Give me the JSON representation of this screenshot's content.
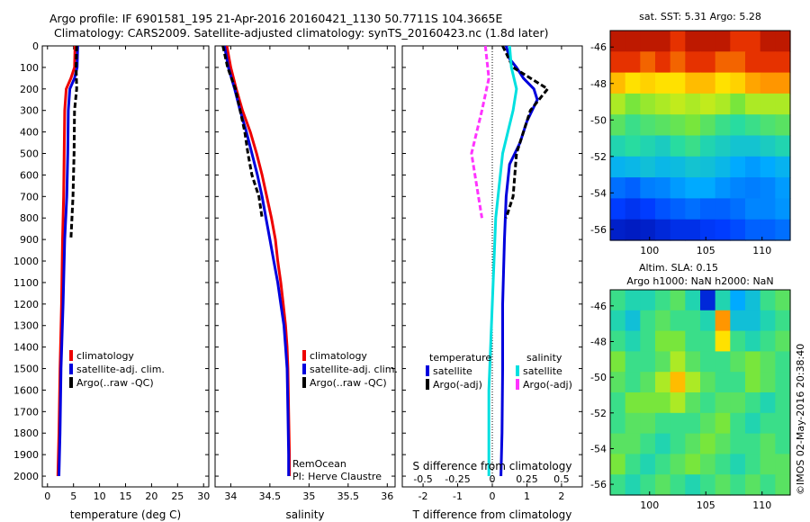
{
  "title_line1": "Argo profile: IF 6901581_195 21-Apr-2016 20160421_1130 50.7711S 104.3665E",
  "title_line2": "Climatology: CARS2009. Satellite-adjusted climatology: synTS_20160423.nc (1.8d later)",
  "watermark": "©IMOS 02-May-2016 20:38:40",
  "chart_data": [
    {
      "id": "temperature",
      "type": "line",
      "xlabel": "temperature (deg C)",
      "ylabel": "",
      "xlim": [
        -1,
        31
      ],
      "ylim": [
        2050,
        0
      ],
      "xticks": [
        0,
        5,
        10,
        15,
        20,
        25,
        30
      ],
      "yticks": [
        0,
        100,
        200,
        300,
        400,
        500,
        600,
        700,
        800,
        900,
        1000,
        1100,
        1200,
        1300,
        1400,
        1500,
        1600,
        1700,
        1800,
        1900,
        2000
      ],
      "legend": [
        "climatology",
        "satellite-adj. clim.",
        "Argo(..raw -QC)"
      ],
      "legend_position": "lower-center",
      "series": [
        {
          "name": "climatology",
          "color": "#ee0000",
          "style": "solid",
          "points": [
            [
              5.3,
              0
            ],
            [
              5.2,
              100
            ],
            [
              4.5,
              150
            ],
            [
              3.6,
              200
            ],
            [
              3.3,
              300
            ],
            [
              3.2,
              500
            ],
            [
              3.1,
              700
            ],
            [
              2.9,
              900
            ],
            [
              2.7,
              1200
            ],
            [
              2.4,
              1500
            ],
            [
              2.2,
              1800
            ],
            [
              2.0,
              2000
            ]
          ]
        },
        {
          "name": "satellite-adj. clim.",
          "color": "#0000dd",
          "style": "solid",
          "points": [
            [
              5.8,
              0
            ],
            [
              5.7,
              100
            ],
            [
              5.2,
              150
            ],
            [
              4.3,
              200
            ],
            [
              4.0,
              300
            ],
            [
              3.9,
              500
            ],
            [
              3.7,
              700
            ],
            [
              3.3,
              900
            ],
            [
              3.0,
              1200
            ],
            [
              2.6,
              1500
            ],
            [
              2.4,
              1800
            ],
            [
              2.2,
              2000
            ]
          ]
        },
        {
          "name": "Argo(..raw -QC)",
          "color": "#000000",
          "style": "dashed",
          "points": [
            [
              5.6,
              0
            ],
            [
              5.5,
              100
            ],
            [
              5.6,
              200
            ],
            [
              5.2,
              300
            ],
            [
              5.1,
              500
            ],
            [
              4.9,
              700
            ],
            [
              4.5,
              900
            ]
          ]
        }
      ]
    },
    {
      "id": "salinity",
      "type": "line",
      "xlabel": "salinity",
      "ylabel": "",
      "xlim": [
        33.8,
        36.1
      ],
      "ylim": [
        2050,
        0
      ],
      "xticks": [
        34,
        34.5,
        35,
        35.5,
        36
      ],
      "legend": [
        "climatology",
        "satellite-adj. clim.",
        "Argo(..raw -QC)"
      ],
      "legend_position": "lower-right",
      "annotations": [
        "RemOcean",
        "PI: Herve Claustre"
      ],
      "series": [
        {
          "name": "climatology",
          "color": "#ee0000",
          "style": "solid",
          "points": [
            [
              33.95,
              0
            ],
            [
              34.0,
              100
            ],
            [
              34.07,
              200
            ],
            [
              34.15,
              300
            ],
            [
              34.25,
              400
            ],
            [
              34.33,
              500
            ],
            [
              34.4,
              600
            ],
            [
              34.46,
              700
            ],
            [
              34.52,
              800
            ],
            [
              34.57,
              900
            ],
            [
              34.6,
              1000
            ],
            [
              34.64,
              1100
            ],
            [
              34.67,
              1200
            ],
            [
              34.7,
              1300
            ],
            [
              34.72,
              1400
            ],
            [
              34.73,
              1500
            ],
            [
              34.74,
              1700
            ],
            [
              34.75,
              1900
            ],
            [
              34.75,
              2000
            ]
          ]
        },
        {
          "name": "satellite-adj. clim.",
          "color": "#0000dd",
          "style": "solid",
          "points": [
            [
              33.92,
              0
            ],
            [
              33.97,
              100
            ],
            [
              34.05,
              200
            ],
            [
              34.12,
              300
            ],
            [
              34.2,
              400
            ],
            [
              34.27,
              500
            ],
            [
              34.34,
              600
            ],
            [
              34.4,
              700
            ],
            [
              34.45,
              800
            ],
            [
              34.5,
              900
            ],
            [
              34.55,
              1000
            ],
            [
              34.6,
              1100
            ],
            [
              34.64,
              1200
            ],
            [
              34.68,
              1300
            ],
            [
              34.7,
              1400
            ],
            [
              34.72,
              1500
            ],
            [
              34.73,
              1700
            ],
            [
              34.74,
              1900
            ],
            [
              34.74,
              2000
            ]
          ]
        },
        {
          "name": "Argo(..raw -QC)",
          "color": "#000000",
          "style": "dashed",
          "points": [
            [
              33.9,
              0
            ],
            [
              33.96,
              100
            ],
            [
              34.06,
              200
            ],
            [
              34.12,
              300
            ],
            [
              34.18,
              400
            ],
            [
              34.22,
              500
            ],
            [
              34.27,
              600
            ],
            [
              34.36,
              700
            ],
            [
              34.4,
              800
            ]
          ]
        }
      ]
    },
    {
      "id": "difference",
      "type": "line",
      "xlabel": "T difference from climatology",
      "xlabel_top": "S difference from climatology",
      "xlim": [
        -2.6,
        2.6
      ],
      "ylim": [
        2050,
        0
      ],
      "xticks": [
        -2,
        -1,
        0,
        1,
        2
      ],
      "xticks_S": [
        -0.5,
        -0.25,
        0,
        0.25,
        0.5
      ],
      "legend_temperature_title": "temperature",
      "legend_salinity_title": "salinity",
      "legend_temperature": [
        "satellite",
        "Argo(-adj)"
      ],
      "legend_salinity": [
        "satellite",
        "Argo(-adj)"
      ],
      "legend_position": "lower-center",
      "series": [
        {
          "name": "temperature satellite",
          "color": "#0000dd",
          "style": "solid",
          "points": [
            [
              0.4,
              0
            ],
            [
              0.5,
              60
            ],
            [
              0.7,
              100
            ],
            [
              0.9,
              150
            ],
            [
              1.2,
              200
            ],
            [
              1.3,
              250
            ],
            [
              1.0,
              350
            ],
            [
              0.8,
              450
            ],
            [
              0.5,
              550
            ],
            [
              0.4,
              700
            ],
            [
              0.35,
              900
            ],
            [
              0.3,
              1200
            ],
            [
              0.3,
              1500
            ],
            [
              0.28,
              1800
            ],
            [
              0.25,
              2000
            ]
          ]
        },
        {
          "name": "temperature Argo(-adj)",
          "color": "#000000",
          "style": "dashed",
          "points": [
            [
              0.3,
              0
            ],
            [
              0.6,
              100
            ],
            [
              1.6,
              200
            ],
            [
              1.1,
              300
            ],
            [
              0.7,
              500
            ],
            [
              0.6,
              700
            ],
            [
              0.4,
              800
            ]
          ]
        },
        {
          "name": "salinity satellite",
          "color": "#00e0e0",
          "style": "solid",
          "points": [
            [
              0.5,
              0
            ],
            [
              0.55,
              100
            ],
            [
              0.7,
              200
            ],
            [
              0.6,
              300
            ],
            [
              0.3,
              500
            ],
            [
              0.1,
              800
            ],
            [
              0.0,
              1200
            ],
            [
              -0.1,
              1600
            ],
            [
              -0.1,
              2000
            ]
          ]
        },
        {
          "name": "salinity Argo(-adj)",
          "color": "#ff33ff",
          "style": "dashed",
          "points": [
            [
              -0.2,
              0
            ],
            [
              -0.1,
              150
            ],
            [
              -0.3,
              300
            ],
            [
              -0.6,
              500
            ],
            [
              -0.4,
              700
            ],
            [
              -0.3,
              800
            ]
          ]
        }
      ]
    },
    {
      "id": "sst-map",
      "type": "heatmap",
      "title": "sat. SST: 5.31  Argo: 5.28",
      "xlim": [
        96.5,
        112.5
      ],
      "ylim": [
        -56.6,
        -45.1
      ],
      "xticks": [
        100,
        105,
        110
      ],
      "yticks": [
        -46,
        -48,
        -50,
        -52,
        -54,
        -56
      ],
      "rows": [
        [
          0.95,
          0.95,
          0.95,
          0.95,
          0.9,
          0.95,
          0.95,
          0.95,
          0.9,
          0.9,
          0.95,
          0.95
        ],
        [
          0.9,
          0.9,
          0.85,
          0.9,
          0.85,
          0.9,
          0.9,
          0.85,
          0.85,
          0.9,
          0.9,
          0.9
        ],
        [
          0.75,
          0.7,
          0.72,
          0.7,
          0.7,
          0.75,
          0.75,
          0.7,
          0.72,
          0.78,
          0.8,
          0.8
        ],
        [
          0.6,
          0.55,
          0.58,
          0.6,
          0.62,
          0.6,
          0.62,
          0.6,
          0.55,
          0.6,
          0.6,
          0.6
        ],
        [
          0.5,
          0.45,
          0.48,
          0.5,
          0.52,
          0.55,
          0.5,
          0.45,
          0.42,
          0.45,
          0.48,
          0.5
        ],
        [
          0.4,
          0.42,
          0.4,
          0.38,
          0.42,
          0.45,
          0.4,
          0.38,
          0.36,
          0.36,
          0.38,
          0.4
        ],
        [
          0.32,
          0.33,
          0.35,
          0.33,
          0.34,
          0.36,
          0.35,
          0.33,
          0.3,
          0.28,
          0.3,
          0.32
        ],
        [
          0.22,
          0.2,
          0.24,
          0.25,
          0.28,
          0.3,
          0.3,
          0.27,
          0.25,
          0.24,
          0.25,
          0.28
        ],
        [
          0.15,
          0.13,
          0.15,
          0.18,
          0.2,
          0.22,
          0.2,
          0.2,
          0.22,
          0.25,
          0.25,
          0.27
        ],
        [
          0.08,
          0.07,
          0.08,
          0.1,
          0.12,
          0.12,
          0.14,
          0.15,
          0.17,
          0.2,
          0.2,
          0.22
        ]
      ]
    },
    {
      "id": "sla-map",
      "type": "heatmap",
      "title_line1": "Altim. SLA: 0.15",
      "title_line2": "Argo h1000: NaN h2000: NaN",
      "xlim": [
        96.5,
        112.5
      ],
      "ylim": [
        -56.6,
        -45.1
      ],
      "xticks": [
        100,
        105,
        110
      ],
      "yticks": [
        -46,
        -48,
        -50,
        -52,
        -54,
        -56
      ],
      "rows": [
        [
          0.45,
          0.4,
          0.4,
          0.45,
          0.5,
          0.4,
          0.1,
          0.4,
          0.3,
          0.35,
          0.45,
          0.5
        ],
        [
          0.4,
          0.35,
          0.45,
          0.5,
          0.45,
          0.45,
          0.4,
          0.8,
          0.35,
          0.35,
          0.4,
          0.45
        ],
        [
          0.45,
          0.4,
          0.45,
          0.55,
          0.55,
          0.45,
          0.45,
          0.7,
          0.45,
          0.4,
          0.45,
          0.5
        ],
        [
          0.55,
          0.45,
          0.45,
          0.5,
          0.6,
          0.5,
          0.45,
          0.45,
          0.5,
          0.55,
          0.5,
          0.45
        ],
        [
          0.5,
          0.45,
          0.5,
          0.6,
          0.75,
          0.6,
          0.5,
          0.45,
          0.45,
          0.55,
          0.5,
          0.45
        ],
        [
          0.45,
          0.55,
          0.55,
          0.55,
          0.6,
          0.5,
          0.45,
          0.5,
          0.5,
          0.45,
          0.4,
          0.45
        ],
        [
          0.45,
          0.5,
          0.5,
          0.45,
          0.45,
          0.45,
          0.5,
          0.55,
          0.45,
          0.4,
          0.45,
          0.45
        ],
        [
          0.5,
          0.5,
          0.45,
          0.4,
          0.45,
          0.5,
          0.55,
          0.5,
          0.45,
          0.45,
          0.5,
          0.45
        ],
        [
          0.55,
          0.45,
          0.4,
          0.45,
          0.5,
          0.55,
          0.5,
          0.45,
          0.4,
          0.45,
          0.5,
          0.5
        ],
        [
          0.45,
          0.4,
          0.45,
          0.5,
          0.45,
          0.4,
          0.45,
          0.5,
          0.45,
          0.5,
          0.45,
          0.5
        ]
      ]
    }
  ]
}
